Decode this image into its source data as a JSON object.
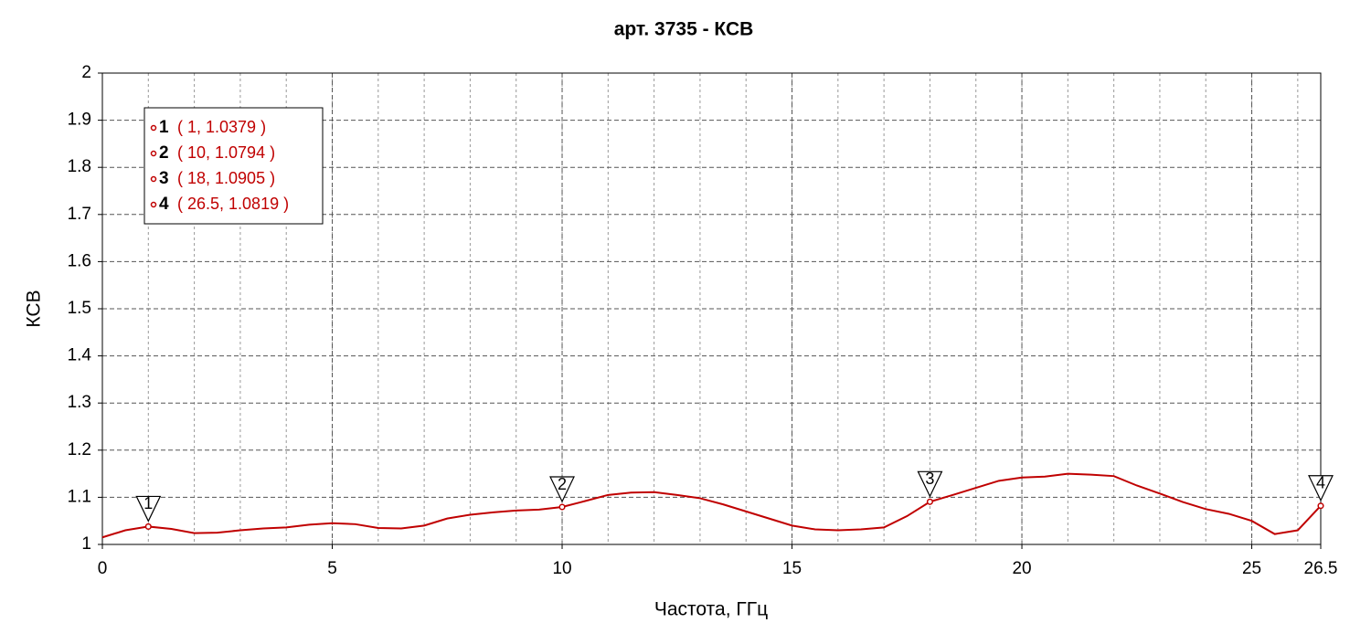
{
  "chart_data": {
    "type": "line",
    "title": "арт. 3735 - КСВ",
    "xlabel": "Частота, ГГц",
    "ylabel": "КСВ",
    "x": [
      0,
      0.5,
      1,
      1.5,
      2,
      2.5,
      3,
      3.5,
      4,
      4.5,
      5,
      5.5,
      6,
      6.5,
      7,
      7.5,
      8,
      8.5,
      9,
      9.5,
      10,
      10.5,
      11,
      11.5,
      12,
      12.5,
      13,
      13.5,
      14,
      14.5,
      15,
      15.5,
      16,
      16.5,
      17,
      17.5,
      18,
      18.5,
      19,
      19.5,
      20,
      20.5,
      21,
      21.5,
      22,
      22.5,
      23,
      23.5,
      24,
      24.5,
      25,
      25.5,
      26,
      26.5
    ],
    "series": [
      {
        "name": "КСВ",
        "color": "#c00000",
        "values": [
          1.015,
          1.03,
          1.0379,
          1.033,
          1.024,
          1.025,
          1.03,
          1.034,
          1.036,
          1.042,
          1.045,
          1.043,
          1.035,
          1.034,
          1.04,
          1.055,
          1.063,
          1.068,
          1.072,
          1.074,
          1.0794,
          1.092,
          1.105,
          1.11,
          1.111,
          1.105,
          1.098,
          1.085,
          1.07,
          1.055,
          1.04,
          1.032,
          1.03,
          1.032,
          1.036,
          1.06,
          1.0905,
          1.105,
          1.12,
          1.135,
          1.142,
          1.144,
          1.15,
          1.148,
          1.145,
          1.125,
          1.108,
          1.09,
          1.075,
          1.065,
          1.05,
          1.022,
          1.03,
          1.0819
        ]
      }
    ],
    "markers": [
      {
        "label": "1",
        "x": 1,
        "y": 1.0379,
        "text": "( 1, 1.0379 )"
      },
      {
        "label": "2",
        "x": 10,
        "y": 1.0794,
        "text": "( 10, 1.0794 )"
      },
      {
        "label": "3",
        "x": 18,
        "y": 1.0905,
        "text": "( 18, 1.0905 )"
      },
      {
        "label": "4",
        "x": 26.5,
        "y": 1.0819,
        "text": "( 26.5, 1.0819 )"
      }
    ],
    "xlim": [
      0,
      26.5
    ],
    "xticks": [
      0,
      5,
      10,
      15,
      20,
      25,
      26.5
    ],
    "ylim": [
      1,
      2
    ],
    "yticks": [
      1,
      1.1,
      1.2,
      1.3,
      1.4,
      1.5,
      1.6,
      1.7,
      1.8,
      1.9,
      2
    ],
    "grid": true
  }
}
